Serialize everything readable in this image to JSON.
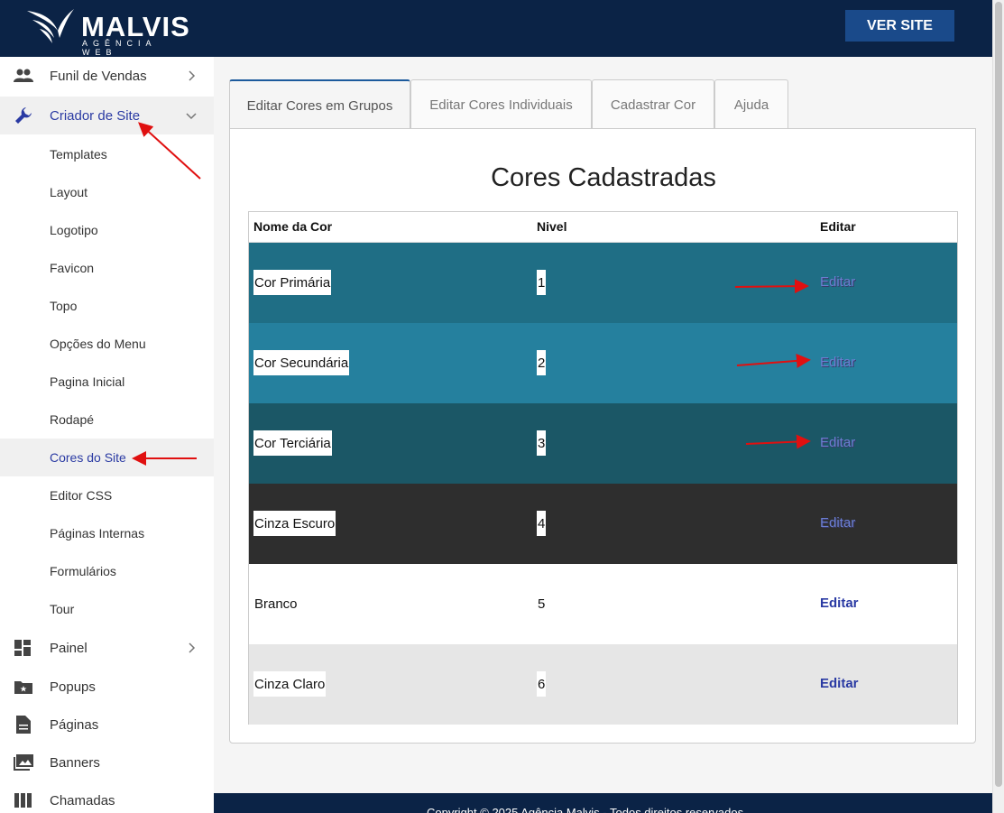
{
  "header": {
    "logo_text": "MALVIS",
    "logo_sub": "AGÊNCIA WEB",
    "ver_site_label": "VER SITE"
  },
  "sidebar": {
    "items": [
      {
        "label": "Funil de Vendas",
        "icon": "people-icon"
      },
      {
        "label": "Criador de Site",
        "icon": "wrench-icon"
      },
      {
        "label": "Painel",
        "icon": "dashboard-icon"
      },
      {
        "label": "Popups",
        "icon": "folder-star-icon"
      },
      {
        "label": "Páginas",
        "icon": "document-icon"
      },
      {
        "label": "Banners",
        "icon": "images-icon"
      },
      {
        "label": "Chamadas",
        "icon": "columns-icon"
      }
    ],
    "subitems": [
      "Templates",
      "Layout",
      "Logotipo",
      "Favicon",
      "Topo",
      "Opções do Menu",
      "Pagina Inicial",
      "Rodapé",
      "Cores do Site",
      "Editor CSS",
      "Páginas Internas",
      "Formulários",
      "Tour"
    ],
    "active_item": "Criador de Site",
    "active_subitem": "Cores do Site"
  },
  "tabs": [
    {
      "label": "Editar Cores em Grupos",
      "active": true
    },
    {
      "label": "Editar Cores Individuais",
      "active": false
    },
    {
      "label": "Cadastrar Cor",
      "active": false
    },
    {
      "label": "Ajuda",
      "active": false
    }
  ],
  "panel": {
    "title": "Cores Cadastradas",
    "columns": [
      "Nome da Cor",
      "Nivel",
      "Editar"
    ],
    "rows": [
      {
        "name": "Cor Primária",
        "nivel": "1",
        "edit": "Editar",
        "bg": "#1f6e85"
      },
      {
        "name": "Cor Secundária",
        "nivel": "2",
        "edit": "Editar",
        "bg": "#25809e"
      },
      {
        "name": "Cor Terciária",
        "nivel": "3",
        "edit": "Editar",
        "bg": "#1b5766"
      },
      {
        "name": "Cinza Escuro",
        "nivel": "4",
        "edit": "Editar",
        "bg": "#2e2e2e"
      },
      {
        "name": "Branco",
        "nivel": "5",
        "edit": "Editar",
        "bg": "#ffffff"
      },
      {
        "name": "Cinza Claro",
        "nivel": "6",
        "edit": "Editar",
        "bg": "#e6e6e6"
      }
    ]
  },
  "footer": {
    "text": "Copyright © 2025 Agência Malvis - Todos direitos reservados"
  },
  "colors": {
    "header_bg": "#0b2346",
    "accent": "#2a3aa3",
    "annotation_arrow": "#e01010"
  }
}
